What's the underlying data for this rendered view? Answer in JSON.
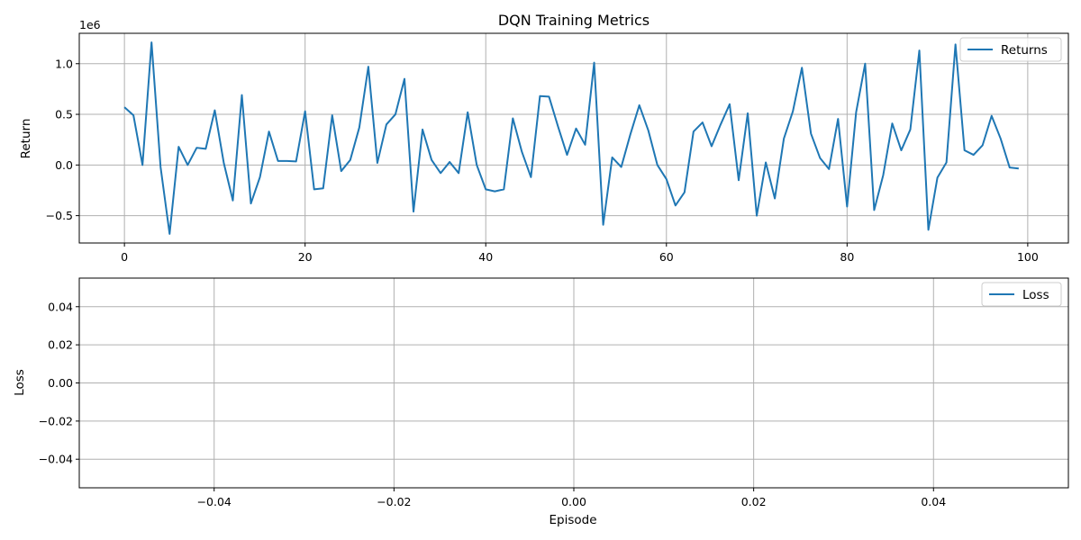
{
  "chart_data": [
    {
      "type": "line",
      "title": "DQN Training Metrics",
      "xlabel": "",
      "ylabel": "Return",
      "y_offset_label": "1e6",
      "y_scale": 1000000,
      "xlim": [
        -5,
        104.5
      ],
      "ylim": [
        -770000,
        1300000
      ],
      "x_ticks": [
        0,
        20,
        40,
        60,
        80,
        100
      ],
      "x_tick_labels": [
        "0",
        "20",
        "40",
        "60",
        "80",
        "100"
      ],
      "y_ticks": [
        -500000,
        0,
        500000,
        1000000
      ],
      "y_tick_labels": [
        "−0.5",
        "0.0",
        "0.5",
        "1.0"
      ],
      "grid": true,
      "legend_position": "top-right",
      "series": [
        {
          "name": "Returns",
          "color": "#1f77b4",
          "x": [
            0,
            1,
            2,
            3,
            4,
            5,
            6,
            7,
            8,
            9,
            10,
            11,
            12,
            13,
            14,
            15,
            16,
            17,
            18,
            19,
            20,
            21,
            22,
            23,
            24,
            25,
            26,
            27,
            28,
            29,
            30,
            31,
            32,
            33,
            34,
            35,
            36,
            37,
            38,
            39,
            40,
            41,
            42,
            43,
            44,
            45,
            46,
            47,
            48,
            49,
            50,
            51,
            52,
            53,
            54,
            55,
            56,
            57,
            58,
            59,
            60,
            61,
            62,
            63,
            64,
            65,
            66,
            67,
            68,
            69,
            70,
            71,
            72,
            73,
            74,
            75,
            76,
            77,
            78,
            79,
            80,
            81,
            82,
            83,
            84,
            85,
            86,
            87,
            88,
            89,
            90,
            91,
            92,
            93,
            94,
            95,
            96,
            97,
            98,
            99
          ],
          "values": [
            570000,
            490000,
            0,
            1210000,
            -20000,
            -680000,
            180000,
            0,
            170000,
            160000,
            540000,
            20000,
            -350000,
            690000,
            -380000,
            -120000,
            330000,
            40000,
            40000,
            35000,
            530000,
            -240000,
            -230000,
            490000,
            -60000,
            50000,
            370000,
            970000,
            20000,
            400000,
            500000,
            850000,
            -460000,
            350000,
            50000,
            -80000,
            30000,
            -80000,
            520000,
            0,
            -240000,
            -260000,
            -240000,
            460000,
            130000,
            -120000,
            680000,
            675000,
            380000,
            100000,
            360000,
            200000,
            1010000,
            -590000,
            75000,
            -20000,
            300000,
            590000,
            340000,
            0,
            -140000,
            -400000,
            -270000,
            330000,
            420000,
            185000,
            400000,
            600000,
            -150000,
            510000,
            -500000,
            25000,
            -330000,
            260000,
            530000,
            960000,
            310000,
            70000,
            -40000,
            455000,
            -410000,
            520000,
            1000000,
            -445000,
            -100000,
            410000,
            145000,
            350000,
            1130000,
            -640000,
            -125000,
            25000,
            1190000,
            145000,
            100000,
            195000,
            485000,
            260000,
            -25000,
            -35000
          ]
        }
      ]
    },
    {
      "type": "line",
      "title": "",
      "xlabel": "Episode",
      "ylabel": "Loss",
      "xlim": [
        -0.055,
        0.055
      ],
      "ylim": [
        -0.055,
        0.055
      ],
      "x_ticks": [
        -0.04,
        -0.02,
        0.0,
        0.02,
        0.04
      ],
      "x_tick_labels": [
        "−0.04",
        "−0.02",
        "0.00",
        "0.02",
        "0.04"
      ],
      "y_ticks": [
        -0.04,
        -0.02,
        0.0,
        0.02,
        0.04
      ],
      "y_tick_labels": [
        "−0.04",
        "−0.02",
        "0.00",
        "0.02",
        "0.04"
      ],
      "grid": true,
      "legend_position": "top-right",
      "series": [
        {
          "name": "Loss",
          "color": "#1f77b4",
          "x": [],
          "values": []
        }
      ]
    }
  ]
}
